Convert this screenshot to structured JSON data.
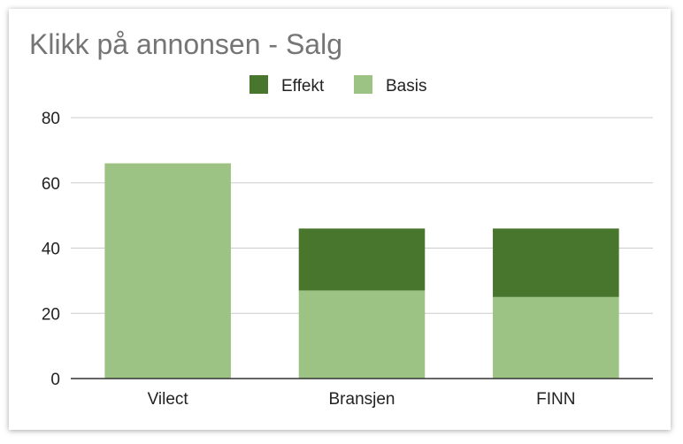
{
  "chart_data": {
    "type": "bar",
    "stacked": true,
    "title": "Klikk på annonsen - Salg",
    "categories": [
      "Vilect",
      "Bransjen",
      "FINN"
    ],
    "series": [
      {
        "name": "Basis",
        "values": [
          66,
          27,
          25
        ],
        "color": "#9dc384"
      },
      {
        "name": "Effekt",
        "values": [
          0,
          19,
          21
        ],
        "color": "#47762c"
      }
    ],
    "legend_order": [
      "Effekt",
      "Basis"
    ],
    "legend_position": "top",
    "ylim": [
      0,
      80
    ],
    "yticks": [
      0,
      20,
      40,
      60,
      80
    ],
    "grid": true,
    "xlabel": "",
    "ylabel": ""
  }
}
